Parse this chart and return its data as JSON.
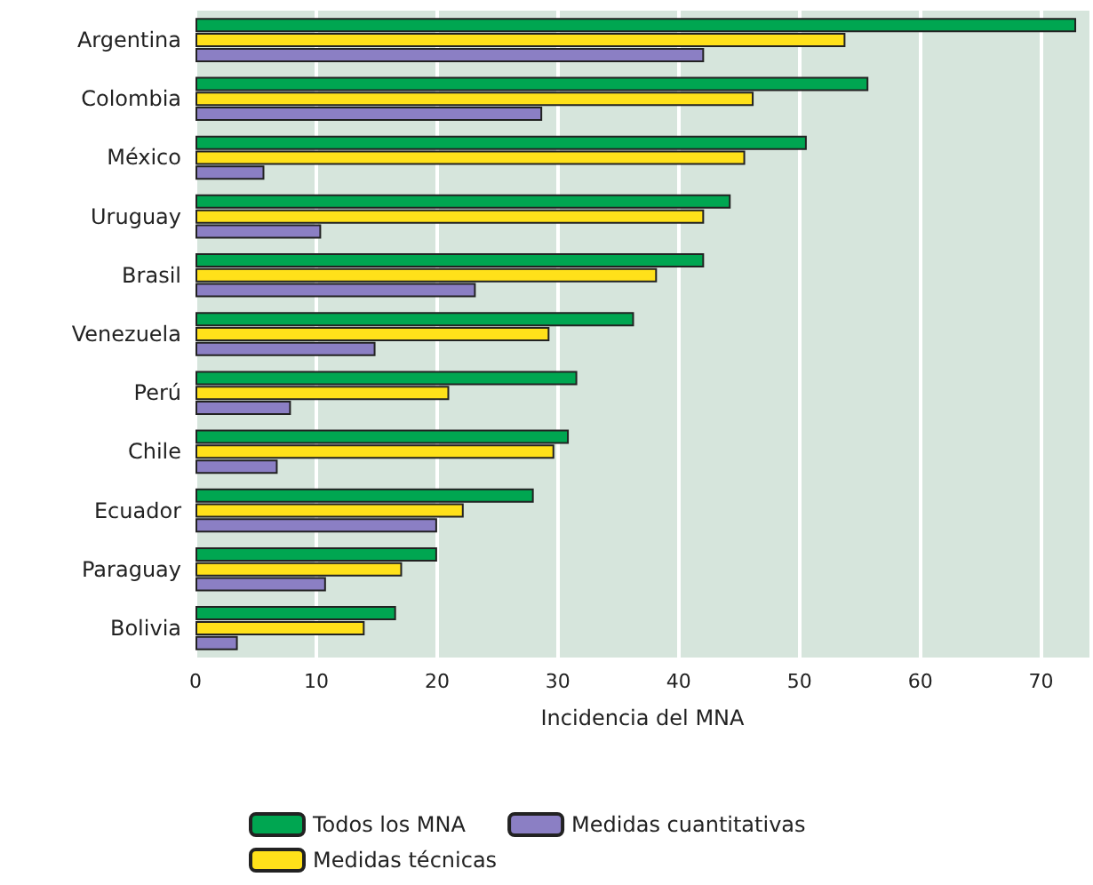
{
  "chart_data": {
    "type": "bar",
    "orientation": "horizontal",
    "xlabel": "Incidencia del MNA",
    "categories": [
      "Argentina",
      "Colombia",
      "México",
      "Uruguay",
      "Brasil",
      "Venezuela",
      "Perú",
      "Chile",
      "Ecuador",
      "Paraguay",
      "Bolivia"
    ],
    "series": [
      {
        "name": "Todos los MNA",
        "color": "#00a651",
        "values": [
          72.9,
          55.7,
          50.6,
          44.3,
          42.1,
          36.3,
          31.6,
          30.9,
          28.0,
          20.0,
          16.6
        ]
      },
      {
        "name": "Medidas técnicas",
        "color": "#ffe11a",
        "values": [
          53.8,
          46.2,
          45.5,
          42.1,
          38.2,
          29.3,
          21.0,
          29.7,
          22.2,
          17.1,
          14.0
        ]
      },
      {
        "name": "Medidas cuantitativas",
        "color": "#8b7fc4",
        "values": [
          42.1,
          28.7,
          5.7,
          10.4,
          23.2,
          14.9,
          7.9,
          6.8,
          20.0,
          10.8,
          3.5
        ]
      }
    ],
    "xlim": [
      0,
      74
    ],
    "xticks": [
      0,
      10,
      20,
      30,
      40,
      50,
      60,
      70
    ],
    "grid": "x",
    "legend": "bottom"
  }
}
